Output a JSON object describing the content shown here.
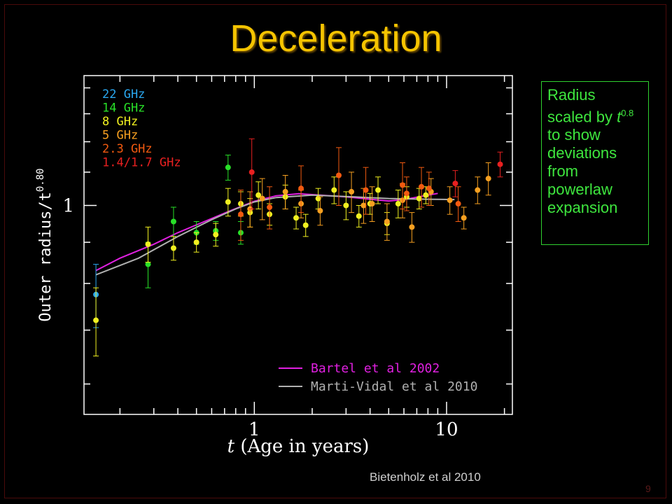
{
  "slide": {
    "title": "Deceleration",
    "credit": "Bietenholz et al 2010",
    "page_number": "9"
  },
  "annotation": {
    "line1": "Radius scaled by ",
    "t_symbol": "t",
    "exponent": "0.8",
    "line2": " to show deviations from powerlaw expansion",
    "color": "#3ee63e"
  },
  "chart_data": {
    "type": "scatter",
    "xlabel_var": "t",
    "xlabel_rest": " (Age in years)",
    "ylabel": "Outer radius/t",
    "ylabel_exponent": "0.80",
    "x_scale": "log",
    "xlim": [
      0.13,
      22
    ],
    "ylim": [
      0.55,
      1.45
    ],
    "x_ticks": [
      {
        "value": 1,
        "label": "1"
      },
      {
        "value": 10,
        "label": "10"
      }
    ],
    "y_ticks": [
      {
        "value": 1,
        "label": "1"
      }
    ],
    "series": [
      {
        "name": "22 GHz",
        "color": "#2aa8f0",
        "points": [
          [
            0.15,
            0.775,
            0.07
          ]
        ]
      },
      {
        "name": "14 GHz",
        "color": "#28e028",
        "points": [
          [
            0.28,
            0.845,
            0.055
          ],
          [
            0.38,
            0.955,
            0.04
          ],
          [
            0.5,
            0.925,
            0.03
          ],
          [
            0.63,
            0.93,
            0.025
          ],
          [
            0.73,
            1.115,
            0.04
          ],
          [
            0.85,
            0.925,
            0.03
          ]
        ]
      },
      {
        "name": "8 GHz",
        "color": "#f0f020",
        "points": [
          [
            0.15,
            0.72,
            0.07
          ],
          [
            0.28,
            0.895,
            0.045
          ],
          [
            0.38,
            0.885,
            0.03
          ],
          [
            0.5,
            0.9,
            0.025
          ],
          [
            0.63,
            0.92,
            0.03
          ],
          [
            0.73,
            1.01,
            0.04
          ],
          [
            0.85,
            1.005,
            0.035
          ],
          [
            0.95,
            0.98,
            0.04
          ],
          [
            1.05,
            1.03,
            0.04
          ],
          [
            1.2,
            0.975,
            0.03
          ],
          [
            1.45,
            1.025,
            0.035
          ],
          [
            1.65,
            0.965,
            0.03
          ],
          [
            1.85,
            0.945,
            0.03
          ],
          [
            2.15,
            1.02,
            0.03
          ],
          [
            2.6,
            1.045,
            0.04
          ],
          [
            3.0,
            1.0,
            0.04
          ],
          [
            3.5,
            0.97,
            0.03
          ],
          [
            4.0,
            1.005,
            0.03
          ],
          [
            4.4,
            1.045,
            0.04
          ],
          [
            4.9,
            0.95,
            0.03
          ],
          [
            5.6,
            1.005,
            0.04
          ],
          [
            6.2,
            1.025,
            0.03
          ],
          [
            7.2,
            1.02,
            0.03
          ],
          [
            7.8,
            1.03,
            0.025
          ]
        ]
      },
      {
        "name": "5 GHz",
        "color": "#f7a020",
        "points": [
          [
            0.95,
            0.99,
            0.05
          ],
          [
            1.1,
            1.02,
            0.06
          ],
          [
            1.45,
            1.04,
            0.05
          ],
          [
            1.75,
            1.005,
            0.04
          ],
          [
            2.2,
            0.985,
            0.04
          ],
          [
            3.2,
            1.04,
            0.06
          ],
          [
            3.7,
            1.0,
            0.05
          ],
          [
            4.1,
            1.005,
            0.05
          ],
          [
            4.9,
            0.955,
            0.05
          ],
          [
            5.9,
            1.015,
            0.05
          ],
          [
            6.6,
            0.94,
            0.04
          ],
          [
            8.3,
            1.04,
            0.04
          ],
          [
            10.4,
            1.015,
            0.04
          ],
          [
            12.3,
            0.965,
            0.03
          ],
          [
            14.5,
            1.045,
            0.04
          ],
          [
            16.5,
            1.08,
            0.05
          ]
        ]
      },
      {
        "name": "2.3 GHz",
        "color": "#f25a10",
        "points": [
          [
            0.85,
            0.975,
            0.07
          ],
          [
            1.2,
            0.995,
            0.06
          ],
          [
            1.75,
            1.05,
            0.07
          ],
          [
            2.75,
            1.09,
            0.09
          ],
          [
            3.8,
            1.045,
            0.07
          ],
          [
            5.9,
            1.06,
            0.07
          ],
          [
            6.2,
            1.035,
            0.05
          ],
          [
            7.4,
            1.055,
            0.06
          ],
          [
            8.1,
            1.05,
            0.05
          ],
          [
            11.5,
            1.005,
            0.05
          ]
        ]
      },
      {
        "name": "1.4/1.7 GHz",
        "color": "#e82020",
        "points": [
          [
            0.97,
            1.1,
            0.11
          ],
          [
            11.1,
            1.065,
            0.04
          ],
          [
            19.0,
            1.125,
            0.04
          ]
        ]
      }
    ],
    "fits": [
      {
        "name": "Bartel et al 2002",
        "color": "#e020e0",
        "points": [
          [
            0.15,
            0.83
          ],
          [
            0.2,
            0.86
          ],
          [
            0.3,
            0.895
          ],
          [
            0.4,
            0.925
          ],
          [
            0.55,
            0.955
          ],
          [
            0.75,
            0.985
          ],
          [
            1.0,
            1.012
          ],
          [
            1.3,
            1.028
          ],
          [
            1.7,
            1.034
          ],
          [
            2.2,
            1.03
          ],
          [
            3.0,
            1.025
          ],
          [
            4.0,
            1.018
          ],
          [
            5.0,
            1.013
          ],
          [
            6.0,
            1.017
          ],
          [
            7.0,
            1.024
          ],
          [
            8.0,
            1.03
          ],
          [
            9.0,
            1.035
          ]
        ]
      },
      {
        "name": "Marti-Vidal et al 2010",
        "color": "#b0b0b0",
        "points": [
          [
            0.15,
            0.82
          ],
          [
            0.25,
            0.86
          ],
          [
            0.4,
            0.915
          ],
          [
            0.6,
            0.96
          ],
          [
            0.8,
            0.99
          ],
          [
            1.0,
            1.01
          ],
          [
            1.3,
            1.023
          ],
          [
            2.0,
            1.03
          ],
          [
            3.0,
            1.026
          ],
          [
            5.0,
            1.02
          ],
          [
            8.0,
            1.018
          ],
          [
            11.0,
            1.017
          ]
        ]
      }
    ]
  }
}
